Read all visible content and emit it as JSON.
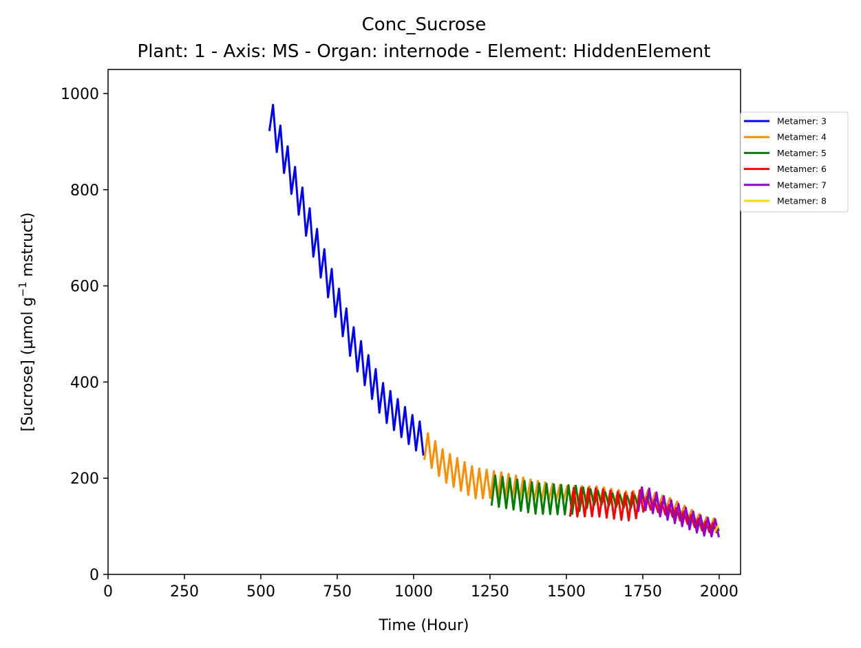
{
  "chart_data": {
    "type": "line",
    "title": "Conc_Sucrose",
    "subtitle": "Plant: 1 - Axis: MS - Organ: internode - Element: HiddenElement",
    "xlabel": "Time (Hour)",
    "ylabel_main": "[Sucrose] (µmol g",
    "ylabel_sup": "−1",
    "ylabel_tail": " mstruct)",
    "xlim": [
      0,
      2070
    ],
    "ylim": [
      0,
      1050
    ],
    "xticks": [
      0,
      250,
      500,
      750,
      1000,
      1250,
      1500,
      1750,
      2000
    ],
    "yticks": [
      0,
      200,
      400,
      600,
      800,
      1000
    ],
    "grid": false,
    "legend_position": "right, outside the plot, top",
    "series": [
      {
        "name": "Metamer: 3",
        "color": "#0000ff",
        "x": [
          528,
          1041
        ],
        "trend": [
          [
            528,
            960
          ],
          [
            600,
            830
          ],
          [
            700,
            650
          ],
          [
            800,
            480
          ],
          [
            900,
            360
          ],
          [
            1000,
            295
          ],
          [
            1041,
            275
          ]
        ],
        "amp": [
          [
            528,
            38
          ],
          [
            700,
            40
          ],
          [
            900,
            38
          ],
          [
            1041,
            32
          ]
        ]
      },
      {
        "name": "Metamer: 4",
        "color": "#ff8c00",
        "x": [
          1035,
          2000
        ],
        "trend": [
          [
            1035,
            270
          ],
          [
            1100,
            225
          ],
          [
            1200,
            190
          ],
          [
            1300,
            185
          ],
          [
            1400,
            175
          ],
          [
            1500,
            170
          ],
          [
            1600,
            170
          ],
          [
            1700,
            160
          ],
          [
            1760,
            165
          ],
          [
            1850,
            145
          ],
          [
            1950,
            110
          ],
          [
            2000,
            105
          ]
        ],
        "amp": [
          [
            1035,
            32
          ],
          [
            1200,
            32
          ],
          [
            1500,
            14
          ],
          [
            1750,
            12
          ],
          [
            2000,
            10
          ]
        ]
      },
      {
        "name": "Metamer: 5",
        "color": "#008000",
        "x": [
          1255,
          2000
        ],
        "trend": [
          [
            1255,
            175
          ],
          [
            1300,
            170
          ],
          [
            1400,
            158
          ],
          [
            1500,
            155
          ],
          [
            1600,
            160
          ],
          [
            1700,
            150
          ],
          [
            1760,
            155
          ],
          [
            1850,
            135
          ],
          [
            1950,
            105
          ],
          [
            2000,
            100
          ]
        ],
        "amp": [
          [
            1255,
            32
          ],
          [
            1400,
            32
          ],
          [
            1520,
            30
          ],
          [
            1600,
            14
          ],
          [
            2000,
            10
          ]
        ]
      },
      {
        "name": "Metamer: 6",
        "color": "#ff0000",
        "x": [
          1512,
          2000
        ],
        "trend": [
          [
            1512,
            150
          ],
          [
            1600,
            150
          ],
          [
            1700,
            140
          ],
          [
            1760,
            150
          ],
          [
            1850,
            130
          ],
          [
            1950,
            100
          ],
          [
            2000,
            95
          ]
        ],
        "amp": [
          [
            1512,
            30
          ],
          [
            1740,
            28
          ],
          [
            1760,
            12
          ],
          [
            2000,
            10
          ]
        ]
      },
      {
        "name": "Metamer: 7",
        "color": "#9400d3",
        "x": [
          1735,
          2000
        ],
        "trend": [
          [
            1735,
            155
          ],
          [
            1760,
            158
          ],
          [
            1850,
            130
          ],
          [
            1950,
            100
          ],
          [
            2000,
            95
          ]
        ],
        "amp": [
          [
            1735,
            25
          ],
          [
            1850,
            22
          ],
          [
            2000,
            18
          ]
        ]
      },
      {
        "name": "Metamer: 8",
        "color": "#ffd700",
        "x": [
          1985,
          2000
        ],
        "trend": [
          [
            1985,
            100
          ],
          [
            2000,
            88
          ]
        ],
        "amp": [
          [
            1985,
            12
          ],
          [
            2000,
            12
          ]
        ]
      }
    ],
    "oscillation_period_hours": 24
  }
}
